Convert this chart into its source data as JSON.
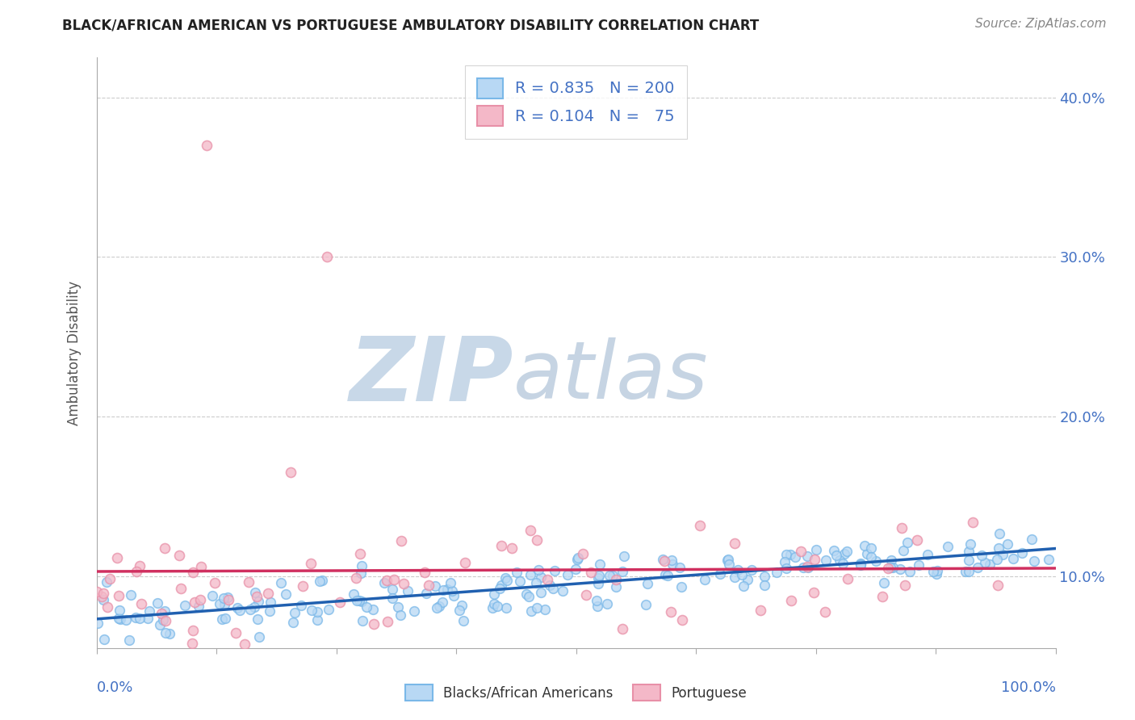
{
  "title": "BLACK/AFRICAN AMERICAN VS PORTUGUESE AMBULATORY DISABILITY CORRELATION CHART",
  "source": "Source: ZipAtlas.com",
  "ylabel": "Ambulatory Disability",
  "xlim": [
    0.0,
    100.0
  ],
  "ylim": [
    0.055,
    0.425
  ],
  "ytick_vals": [
    0.1,
    0.2,
    0.3,
    0.4
  ],
  "ytick_labels": [
    "10.0%",
    "20.0%",
    "30.0%",
    "40.0%"
  ],
  "blue_edge_color": "#7ab8e8",
  "pink_edge_color": "#e890a8",
  "blue_face_color": "#b8d8f4",
  "pink_face_color": "#f4b8c8",
  "blue_line_color": "#2060b0",
  "pink_line_color": "#d03060",
  "legend_R1": "0.835",
  "legend_N1": "200",
  "legend_R2": "0.104",
  "legend_N2": "75",
  "n_blue": 200,
  "n_pink": 75,
  "background_color": "#ffffff",
  "grid_color": "#cccccc",
  "legend_text_color": "#4472c4",
  "axis_value_color": "#4472c4",
  "title_color": "#222222",
  "source_color": "#888888",
  "ylabel_color": "#555555"
}
